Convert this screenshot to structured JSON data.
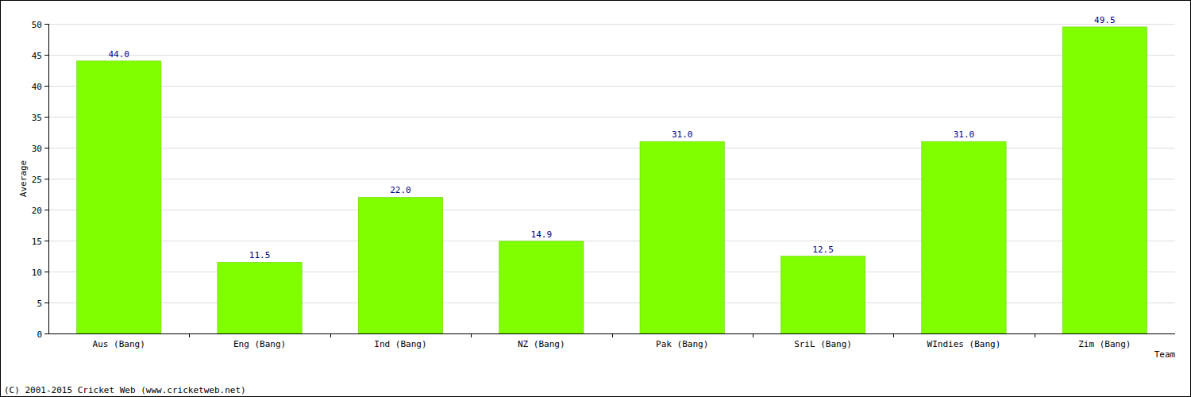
{
  "chart_data": {
    "type": "bar",
    "categories": [
      "Aus (Bang)",
      "Eng (Bang)",
      "Ind (Bang)",
      "NZ (Bang)",
      "Pak (Bang)",
      "SriL (Bang)",
      "WIndies (Bang)",
      "Zim (Bang)"
    ],
    "values": [
      44,
      11.5,
      22,
      14.9,
      31,
      12.5,
      31,
      49.5
    ],
    "value_labels": [
      "44.0",
      "11.5",
      "22.0",
      "14.9",
      "31.0",
      "12.5",
      "31.0",
      "49.5"
    ],
    "data_labels": true,
    "color": "#7fff00",
    "x_label": "Team",
    "y_label": "Average",
    "annotations": [
      "(C) 2001-2015 Cricket Web (www.cricketweb.net)"
    ],
    "ylim": [
      0,
      50
    ],
    "yticks": [
      0,
      5,
      10,
      15,
      20,
      25,
      30,
      35,
      40,
      45,
      50
    ],
    "grid": true
  }
}
